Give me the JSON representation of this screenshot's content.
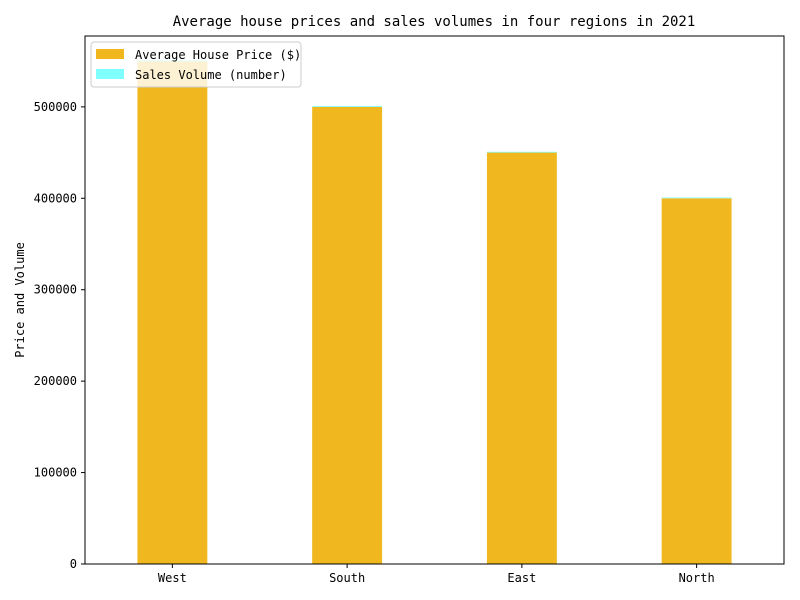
{
  "chart_data": {
    "type": "bar",
    "title": "Average house prices and sales volumes in four regions in 2021",
    "xlabel": "",
    "ylabel": "Price and Volume",
    "categories": [
      "West",
      "South",
      "East",
      "North"
    ],
    "series": [
      {
        "name": "Average House Price ($)",
        "values": [
          550000,
          500000,
          450000,
          400000
        ],
        "color": "#f0b81e"
      },
      {
        "name": "Sales Volume (number)",
        "values": [
          1200,
          1000,
          900,
          800
        ],
        "color": "#7fffff"
      }
    ],
    "stacked": true,
    "ylim": [
      0,
      577500
    ],
    "yticks": [
      "0",
      "100000",
      "200000",
      "300000",
      "400000",
      "500000"
    ],
    "grid": false,
    "legend_position": "top-left"
  }
}
